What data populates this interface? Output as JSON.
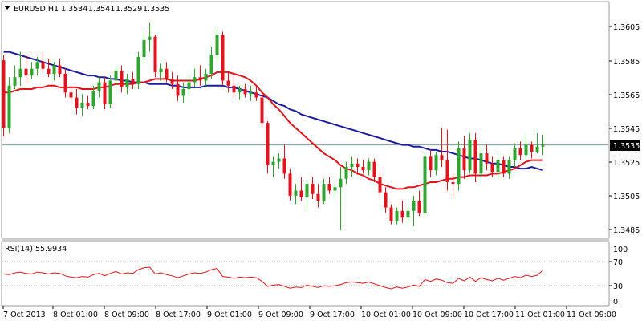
{
  "header": {
    "symbol": "EURUSD,H1",
    "ohlc": [
      "1.3534",
      "1.3541",
      "1.3529",
      "1.3535"
    ]
  },
  "price_panel": {
    "y_ticks": [
      "1.3605",
      "1.3585",
      "1.3565",
      "1.3545",
      "1.3525",
      "1.3505",
      "1.3485"
    ],
    "current_price_label": "1.3535"
  },
  "rsi_panel": {
    "title": "RSI(14) 55.9934",
    "y_ticks": [
      "100",
      "70",
      "30",
      "0"
    ]
  },
  "time_axis": {
    "labels": [
      "7 Oct 2013",
      "8 Oct 01:00",
      "8 Oct 09:00",
      "8 Oct 17:00",
      "9 Oct 01:00",
      "9 Oct 09:00",
      "9 Oct 17:00",
      "10 Oct 01:00",
      "10 Oct 09:00",
      "10 Oct 17:00",
      "11 Oct 01:00",
      "11 Oct 09:00"
    ]
  },
  "colors": {
    "bull": "#2fa42f",
    "bear": "#e0141c",
    "ma_fast": "#e0141c",
    "ma_slow": "#1c1c9c",
    "current_line": "#7b9b9b",
    "rsi_line": "#e0141c",
    "grid_dots": "#aaaaaa",
    "frame": "#9a9a9a"
  },
  "chart_data": {
    "type": "candlestick",
    "symbol": "EURUSD",
    "timeframe": "H1",
    "ylim": [
      1.3478,
      1.3625
    ],
    "rsi_ylim": [
      0,
      100
    ],
    "rsi_levels": [
      70,
      30
    ],
    "current_price": 1.3535,
    "candles": [
      [
        1.3585,
        1.3588,
        1.354,
        1.3545
      ],
      [
        1.3545,
        1.3575,
        1.3542,
        1.357
      ],
      [
        1.357,
        1.3582,
        1.3568,
        1.3575
      ],
      [
        1.3575,
        1.359,
        1.357,
        1.358
      ],
      [
        1.358,
        1.3588,
        1.3572,
        1.3576
      ],
      [
        1.3576,
        1.3584,
        1.3574,
        1.358
      ],
      [
        1.358,
        1.3587,
        1.3576,
        1.3584
      ],
      [
        1.3584,
        1.359,
        1.3578,
        1.358
      ],
      [
        1.358,
        1.3586,
        1.3575,
        1.3577
      ],
      [
        1.3577,
        1.3584,
        1.3573,
        1.3582
      ],
      [
        1.3582,
        1.3586,
        1.3575,
        1.3577
      ],
      [
        1.3577,
        1.358,
        1.3563,
        1.3566
      ],
      [
        1.3566,
        1.357,
        1.356,
        1.3563
      ],
      [
        1.3563,
        1.3568,
        1.3553,
        1.3557
      ],
      [
        1.3557,
        1.3565,
        1.3552,
        1.356
      ],
      [
        1.356,
        1.3564,
        1.3556,
        1.3558
      ],
      [
        1.3558,
        1.357,
        1.3556,
        1.3567
      ],
      [
        1.3567,
        1.3575,
        1.3563,
        1.3572
      ],
      [
        1.3572,
        1.3575,
        1.3556,
        1.3559
      ],
      [
        1.3559,
        1.3576,
        1.3557,
        1.3573
      ],
      [
        1.3573,
        1.3582,
        1.357,
        1.3579
      ],
      [
        1.3579,
        1.3582,
        1.3566,
        1.3569
      ],
      [
        1.3569,
        1.3577,
        1.3565,
        1.3574
      ],
      [
        1.3574,
        1.3578,
        1.3568,
        1.3571
      ],
      [
        1.3571,
        1.359,
        1.3568,
        1.3587
      ],
      [
        1.3587,
        1.3602,
        1.3583,
        1.3597
      ],
      [
        1.3597,
        1.3607,
        1.359,
        1.3599
      ],
      [
        1.3599,
        1.36,
        1.3575,
        1.3578
      ],
      [
        1.3578,
        1.3583,
        1.3573,
        1.358
      ],
      [
        1.358,
        1.3584,
        1.3572,
        1.3574
      ],
      [
        1.3574,
        1.3578,
        1.3568,
        1.3571
      ],
      [
        1.3571,
        1.3576,
        1.3561,
        1.3564
      ],
      [
        1.3564,
        1.3572,
        1.356,
        1.3568
      ],
      [
        1.3568,
        1.3576,
        1.3565,
        1.3572
      ],
      [
        1.3572,
        1.358,
        1.3569,
        1.3575
      ],
      [
        1.3575,
        1.3582,
        1.357,
        1.3573
      ],
      [
        1.3573,
        1.358,
        1.357,
        1.3577
      ],
      [
        1.3577,
        1.3593,
        1.3574,
        1.3588
      ],
      [
        1.3588,
        1.3604,
        1.3585,
        1.36
      ],
      [
        1.36,
        1.3602,
        1.357,
        1.3573
      ],
      [
        1.3573,
        1.3578,
        1.3566,
        1.357
      ],
      [
        1.357,
        1.3576,
        1.3563,
        1.3566
      ],
      [
        1.3566,
        1.357,
        1.3562,
        1.3568
      ],
      [
        1.3568,
        1.3571,
        1.3563,
        1.3565
      ],
      [
        1.3565,
        1.357,
        1.3561,
        1.3566
      ],
      [
        1.3566,
        1.357,
        1.3561,
        1.3563
      ],
      [
        1.3563,
        1.3566,
        1.3545,
        1.3548
      ],
      [
        1.3548,
        1.3549,
        1.3518,
        1.3523
      ],
      [
        1.3523,
        1.3528,
        1.3516,
        1.3525
      ],
      [
        1.3525,
        1.353,
        1.3521,
        1.3527
      ],
      [
        1.3527,
        1.3535,
        1.3515,
        1.3518
      ],
      [
        1.3518,
        1.3521,
        1.3502,
        1.3505
      ],
      [
        1.3505,
        1.3512,
        1.35,
        1.3508
      ],
      [
        1.3508,
        1.3516,
        1.3502,
        1.3504
      ],
      [
        1.3504,
        1.3514,
        1.3496,
        1.3512
      ],
      [
        1.3512,
        1.3516,
        1.3503,
        1.3506
      ],
      [
        1.3506,
        1.3512,
        1.3498,
        1.3502
      ],
      [
        1.3502,
        1.3515,
        1.35,
        1.3512
      ],
      [
        1.3512,
        1.3516,
        1.3506,
        1.3508
      ],
      [
        1.3508,
        1.3512,
        1.3503,
        1.351
      ],
      [
        1.351,
        1.3522,
        1.3485,
        1.3515
      ],
      [
        1.3515,
        1.3525,
        1.3512,
        1.3522
      ],
      [
        1.3522,
        1.3528,
        1.3516,
        1.3524
      ],
      [
        1.3524,
        1.3527,
        1.3518,
        1.3522
      ],
      [
        1.3522,
        1.3526,
        1.3518,
        1.352
      ],
      [
        1.352,
        1.3527,
        1.3517,
        1.3525
      ],
      [
        1.3525,
        1.3527,
        1.3513,
        1.3516
      ],
      [
        1.3516,
        1.3519,
        1.3503,
        1.3507
      ],
      [
        1.3507,
        1.351,
        1.3495,
        1.3498
      ],
      [
        1.3498,
        1.35,
        1.3488,
        1.349
      ],
      [
        1.349,
        1.3498,
        1.3488,
        1.3496
      ],
      [
        1.3496,
        1.3502,
        1.3489,
        1.3492
      ],
      [
        1.3492,
        1.35,
        1.3489,
        1.3496
      ],
      [
        1.3496,
        1.3505,
        1.3487,
        1.3502
      ],
      [
        1.3502,
        1.3508,
        1.3493,
        1.3495
      ],
      [
        1.3495,
        1.353,
        1.3493,
        1.3528
      ],
      [
        1.3528,
        1.3532,
        1.3516,
        1.352
      ],
      [
        1.352,
        1.3531,
        1.3517,
        1.3529
      ],
      [
        1.3529,
        1.3545,
        1.3522,
        1.3526
      ],
      [
        1.3526,
        1.3544,
        1.3508,
        1.3513
      ],
      [
        1.3513,
        1.3518,
        1.3504,
        1.3512
      ],
      [
        1.3512,
        1.3537,
        1.3508,
        1.3533
      ],
      [
        1.3533,
        1.354,
        1.3515,
        1.352
      ],
      [
        1.352,
        1.3542,
        1.3518,
        1.3538
      ],
      [
        1.3538,
        1.3542,
        1.3513,
        1.3518
      ],
      [
        1.3518,
        1.3534,
        1.3515,
        1.353
      ],
      [
        1.353,
        1.3535,
        1.352,
        1.3524
      ],
      [
        1.3524,
        1.3528,
        1.3516,
        1.3519
      ],
      [
        1.3519,
        1.353,
        1.3515,
        1.3526
      ],
      [
        1.3526,
        1.3528,
        1.3516,
        1.3518
      ],
      [
        1.3518,
        1.3528,
        1.3515,
        1.3526
      ],
      [
        1.3526,
        1.3536,
        1.3522,
        1.3533
      ],
      [
        1.3533,
        1.3537,
        1.3526,
        1.3529
      ],
      [
        1.3529,
        1.3541,
        1.3526,
        1.3535
      ],
      [
        1.3535,
        1.3537,
        1.3527,
        1.3531
      ],
      [
        1.3531,
        1.3542,
        1.353,
        1.3534
      ],
      [
        1.3534,
        1.3541,
        1.3529,
        1.3535
      ]
    ],
    "ma_fast": [
      1.3566,
      1.3566,
      1.3567,
      1.3568,
      1.3568,
      1.3568,
      1.3569,
      1.3569,
      1.357,
      1.357,
      1.3569,
      1.3569,
      1.3569,
      1.3569,
      1.3568,
      1.3568,
      1.3568,
      1.3569,
      1.3569,
      1.357,
      1.3571,
      1.3571,
      1.3571,
      1.3571,
      1.3572,
      1.3572,
      1.3573,
      1.3574,
      1.3574,
      1.3574,
      1.3573,
      1.3573,
      1.3573,
      1.3573,
      1.3573,
      1.3574,
      1.3575,
      1.3576,
      1.3578,
      1.3578,
      1.3578,
      1.3577,
      1.3576,
      1.3575,
      1.3573,
      1.357,
      1.3566,
      1.3563,
      1.3559,
      1.3556,
      1.3552,
      1.3548,
      1.3545,
      1.3542,
      1.3539,
      1.3536,
      1.3533,
      1.353,
      1.3528,
      1.3526,
      1.3523,
      1.3521,
      1.352,
      1.3518,
      1.3517,
      1.3515,
      1.3514,
      1.3512,
      1.3511,
      1.351,
      1.3509,
      1.3509,
      1.351,
      1.351,
      1.3511,
      1.3512,
      1.3513,
      1.3513,
      1.3514,
      1.3515,
      1.3515,
      1.3516,
      1.3516,
      1.3517,
      1.3517,
      1.3517,
      1.3517,
      1.3518,
      1.3518,
      1.3519,
      1.352,
      1.3521,
      1.3523,
      1.3525,
      1.3526,
      1.3526,
      1.3526
    ],
    "ma_slow": [
      1.359,
      1.359,
      1.3589,
      1.3588,
      1.3587,
      1.3586,
      1.3585,
      1.3584,
      1.3583,
      1.3582,
      1.3581,
      1.358,
      1.3579,
      1.3578,
      1.3577,
      1.3576,
      1.3576,
      1.3575,
      1.3575,
      1.3574,
      1.3574,
      1.3573,
      1.3573,
      1.3572,
      1.3572,
      1.3572,
      1.3571,
      1.3571,
      1.3571,
      1.3571,
      1.357,
      1.357,
      1.3569,
      1.3569,
      1.3569,
      1.3569,
      1.357,
      1.357,
      1.357,
      1.357,
      1.3569,
      1.3569,
      1.3568,
      1.3567,
      1.3566,
      1.3565,
      1.3564,
      1.3563,
      1.3561,
      1.3559,
      1.3558,
      1.3556,
      1.3555,
      1.3553,
      1.3552,
      1.3551,
      1.355,
      1.3549,
      1.3548,
      1.3547,
      1.3546,
      1.3545,
      1.3544,
      1.3543,
      1.3542,
      1.3541,
      1.354,
      1.3539,
      1.3538,
      1.3537,
      1.3536,
      1.3535,
      1.3535,
      1.3534,
      1.3534,
      1.3533,
      1.3532,
      1.3532,
      1.3531,
      1.3531,
      1.353,
      1.3529,
      1.3528,
      1.3527,
      1.3527,
      1.3526,
      1.3525,
      1.3524,
      1.3524,
      1.3523,
      1.3522,
      1.3522,
      1.3521,
      1.3521,
      1.3522,
      1.3521,
      1.352
    ],
    "rsi": [
      50,
      49,
      52,
      53,
      51,
      50,
      53,
      52,
      50,
      52,
      51,
      47,
      45,
      44,
      46,
      45,
      49,
      51,
      47,
      51,
      54,
      50,
      52,
      51,
      57,
      60,
      61,
      50,
      52,
      49,
      47,
      44,
      47,
      50,
      52,
      51,
      53,
      57,
      59,
      46,
      45,
      43,
      45,
      44,
      45,
      44,
      38,
      30,
      32,
      33,
      30,
      27,
      29,
      28,
      32,
      30,
      28,
      31,
      30,
      31,
      33,
      36,
      37,
      36,
      35,
      37,
      34,
      31,
      28,
      26,
      29,
      27,
      29,
      32,
      30,
      41,
      38,
      42,
      40,
      36,
      35,
      43,
      39,
      45,
      38,
      44,
      41,
      39,
      43,
      40,
      43,
      46,
      44,
      48,
      46,
      48,
      56
    ]
  }
}
